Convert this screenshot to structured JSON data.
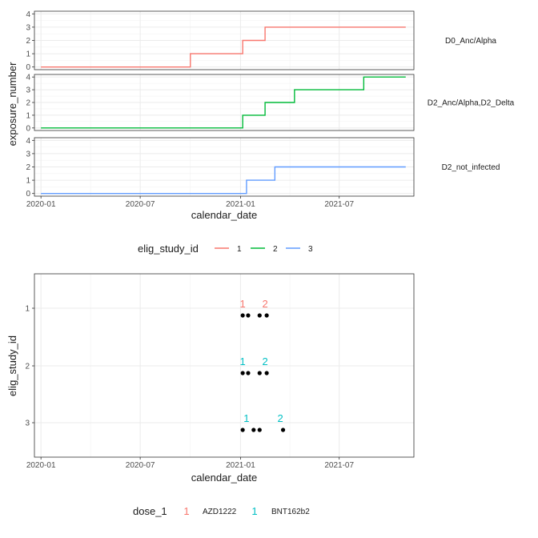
{
  "chart_data": [
    {
      "type": "line",
      "line_shape": "step",
      "xlabel": "calendar_date",
      "ylabel": "exposure_number",
      "x_ticks": [
        "2020-01",
        "2020-07",
        "2021-01",
        "2021-07"
      ],
      "x_tick_dates": [
        "2020-01-01",
        "2020-07-01",
        "2021-01-01",
        "2021-07-01"
      ],
      "xlim": [
        "2019-12-20",
        "2021-11-15"
      ],
      "y_ticks": [
        0,
        1,
        2,
        3,
        4
      ],
      "ylim": [
        -0.2,
        4.2
      ],
      "grid": true,
      "legend": {
        "title": "elig_study_id",
        "position": "bottom",
        "entries": [
          {
            "label": "1",
            "color": "#F8766D"
          },
          {
            "label": "2",
            "color": "#00BA38"
          },
          {
            "label": "3",
            "color": "#619CFF"
          }
        ]
      },
      "panels": [
        {
          "strip": "D0_Anc/Alpha",
          "series": "1",
          "color": "#F8766D",
          "steps": [
            {
              "date": "2020-01-01",
              "value": 0
            },
            {
              "date": "2020-10-01",
              "value": 1
            },
            {
              "date": "2021-01-05",
              "value": 2
            },
            {
              "date": "2021-02-15",
              "value": 3
            },
            {
              "date": "2021-10-31",
              "value": 3
            }
          ]
        },
        {
          "strip": "D2_Anc/Alpha,D2_Delta",
          "series": "2",
          "color": "#00BA38",
          "steps": [
            {
              "date": "2020-01-01",
              "value": 0
            },
            {
              "date": "2021-01-05",
              "value": 1
            },
            {
              "date": "2021-02-15",
              "value": 2
            },
            {
              "date": "2021-04-10",
              "value": 3
            },
            {
              "date": "2021-08-15",
              "value": 4
            },
            {
              "date": "2021-10-31",
              "value": 4
            }
          ]
        },
        {
          "strip": "D2_not_infected",
          "series": "3",
          "color": "#619CFF",
          "steps": [
            {
              "date": "2020-01-01",
              "value": 0
            },
            {
              "date": "2021-01-12",
              "value": 1
            },
            {
              "date": "2021-03-05",
              "value": 2
            },
            {
              "date": "2021-10-31",
              "value": 2
            }
          ]
        }
      ]
    },
    {
      "type": "scatter",
      "xlabel": "calendar_date",
      "ylabel": "elig_study_id",
      "x_ticks": [
        "2020-01",
        "2020-07",
        "2021-01",
        "2021-07"
      ],
      "x_tick_dates": [
        "2020-01-01",
        "2020-07-01",
        "2021-01-01",
        "2021-07-01"
      ],
      "xlim": [
        "2019-12-20",
        "2021-11-15"
      ],
      "y_categories": [
        "1",
        "2",
        "3"
      ],
      "grid": true,
      "point_color": "#000000",
      "points": [
        {
          "date": "2021-01-05",
          "y": "1"
        },
        {
          "date": "2021-01-15",
          "y": "1"
        },
        {
          "date": "2021-02-05",
          "y": "1"
        },
        {
          "date": "2021-02-18",
          "y": "1"
        },
        {
          "date": "2021-01-05",
          "y": "2"
        },
        {
          "date": "2021-01-15",
          "y": "2"
        },
        {
          "date": "2021-02-05",
          "y": "2"
        },
        {
          "date": "2021-02-18",
          "y": "2"
        },
        {
          "date": "2021-01-05",
          "y": "3"
        },
        {
          "date": "2021-01-25",
          "y": "3"
        },
        {
          "date": "2021-02-05",
          "y": "3"
        },
        {
          "date": "2021-03-20",
          "y": "3"
        }
      ],
      "annotations": [
        {
          "text": "1",
          "date": "2021-01-05",
          "y": "1",
          "dose": "AZD1222"
        },
        {
          "text": "2",
          "date": "2021-02-15",
          "y": "1",
          "dose": "AZD1222"
        },
        {
          "text": "1",
          "date": "2021-01-05",
          "y": "2",
          "dose": "BNT162b2"
        },
        {
          "text": "2",
          "date": "2021-02-15",
          "y": "2",
          "dose": "BNT162b2"
        },
        {
          "text": "1",
          "date": "2021-01-12",
          "y": "3",
          "dose": "BNT162b2"
        },
        {
          "text": "2",
          "date": "2021-03-15",
          "y": "3",
          "dose": "BNT162b2"
        }
      ],
      "legend": {
        "title": "dose_1",
        "position": "bottom",
        "entries": [
          {
            "key": "1",
            "label": "AZD1222",
            "color": "#F8766D"
          },
          {
            "key": "1",
            "label": "BNT162b2",
            "color": "#00BFC4"
          }
        ]
      }
    }
  ]
}
